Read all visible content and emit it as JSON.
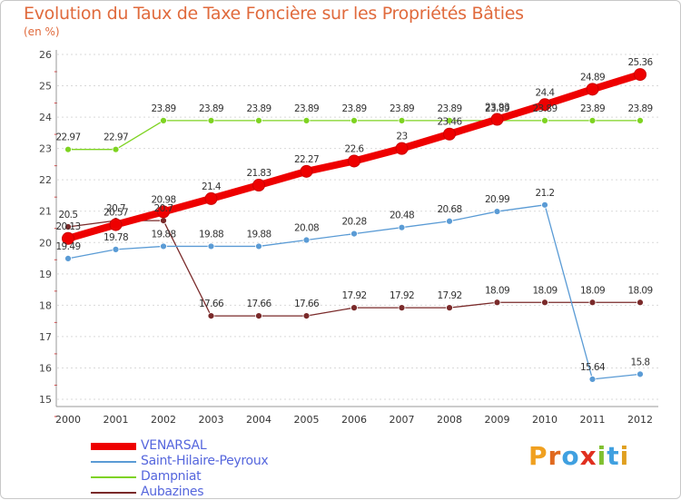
{
  "page": {
    "title": "Evolution du Taux de Taxe Foncière sur les Propriétés Bâties",
    "unit": "(en %)"
  },
  "logo": {
    "letters": [
      "P",
      "r",
      "o",
      "x",
      "i",
      "t",
      "i"
    ],
    "colors": [
      "#f0a020",
      "#e06a20",
      "#40a0e0",
      "#e03020",
      "#80c030",
      "#40a0e0",
      "#e0a020"
    ]
  },
  "chart_data": {
    "type": "line",
    "title": "Evolution du Taux de Taxe Foncière sur les Propriétés Bâties",
    "ylabel": "(en %)",
    "xlabel": "",
    "x": [
      "2000",
      "2001",
      "2002",
      "2003",
      "2004",
      "2005",
      "2006",
      "2007",
      "2008",
      "2009",
      "2010",
      "2011",
      "2012"
    ],
    "yticks": [
      "15",
      "16",
      "17",
      "18",
      "19",
      "20",
      "21",
      "22",
      "23",
      "24",
      "25",
      "26"
    ],
    "ylim": [
      15,
      26
    ],
    "grid": "horizontal-dotted",
    "legend_position": "bottom-left",
    "series": [
      {
        "name": "VENARSAL",
        "color": "#ee0000",
        "values": [
          20.13,
          20.57,
          20.98,
          21.4,
          21.83,
          22.27,
          22.6,
          23,
          23.46,
          23.93,
          24.4,
          24.89,
          25.36
        ],
        "labels": [
          "20.13",
          "20.57",
          "20.98",
          "21.4",
          "21.83",
          "22.27",
          "22.6",
          "23",
          "23.46",
          "23.93",
          "24.4",
          "24.89",
          "25.36"
        ]
      },
      {
        "name": "Saint-Hilaire-Peyroux",
        "color": "#5a9bd5",
        "values": [
          19.49,
          19.78,
          19.88,
          19.88,
          19.88,
          20.08,
          20.28,
          20.48,
          20.68,
          20.99,
          21.2,
          15.64,
          15.8
        ],
        "labels": [
          "19.49",
          "19.78",
          "19.88",
          "19.88",
          "19.88",
          "20.08",
          "20.28",
          "20.48",
          "20.68",
          "20.99",
          "21.2",
          "15.64",
          "15.8"
        ]
      },
      {
        "name": "Dampniat",
        "color": "#7ed321",
        "values": [
          22.97,
          22.97,
          23.89,
          23.89,
          23.89,
          23.89,
          23.89,
          23.89,
          23.89,
          23.89,
          23.89,
          23.89,
          23.89
        ],
        "labels": [
          "22.97",
          "22.97",
          "23.89",
          "23.89",
          "23.89",
          "23.89",
          "23.89",
          "23.89",
          "23.89",
          "23.89",
          "23.89",
          "23.89",
          "23.89"
        ]
      },
      {
        "name": "Aubazines",
        "color": "#7a2a2a",
        "values": [
          20.5,
          20.7,
          20.7,
          17.66,
          17.66,
          17.66,
          17.92,
          17.92,
          17.92,
          18.09,
          18.09,
          18.09,
          18.09
        ],
        "labels": [
          "20.5",
          "20.7",
          "20.7",
          "17.66",
          "17.66",
          "17.66",
          "17.92",
          "17.92",
          "17.92",
          "18.09",
          "18.09",
          "18.09",
          "18.09"
        ]
      }
    ]
  }
}
